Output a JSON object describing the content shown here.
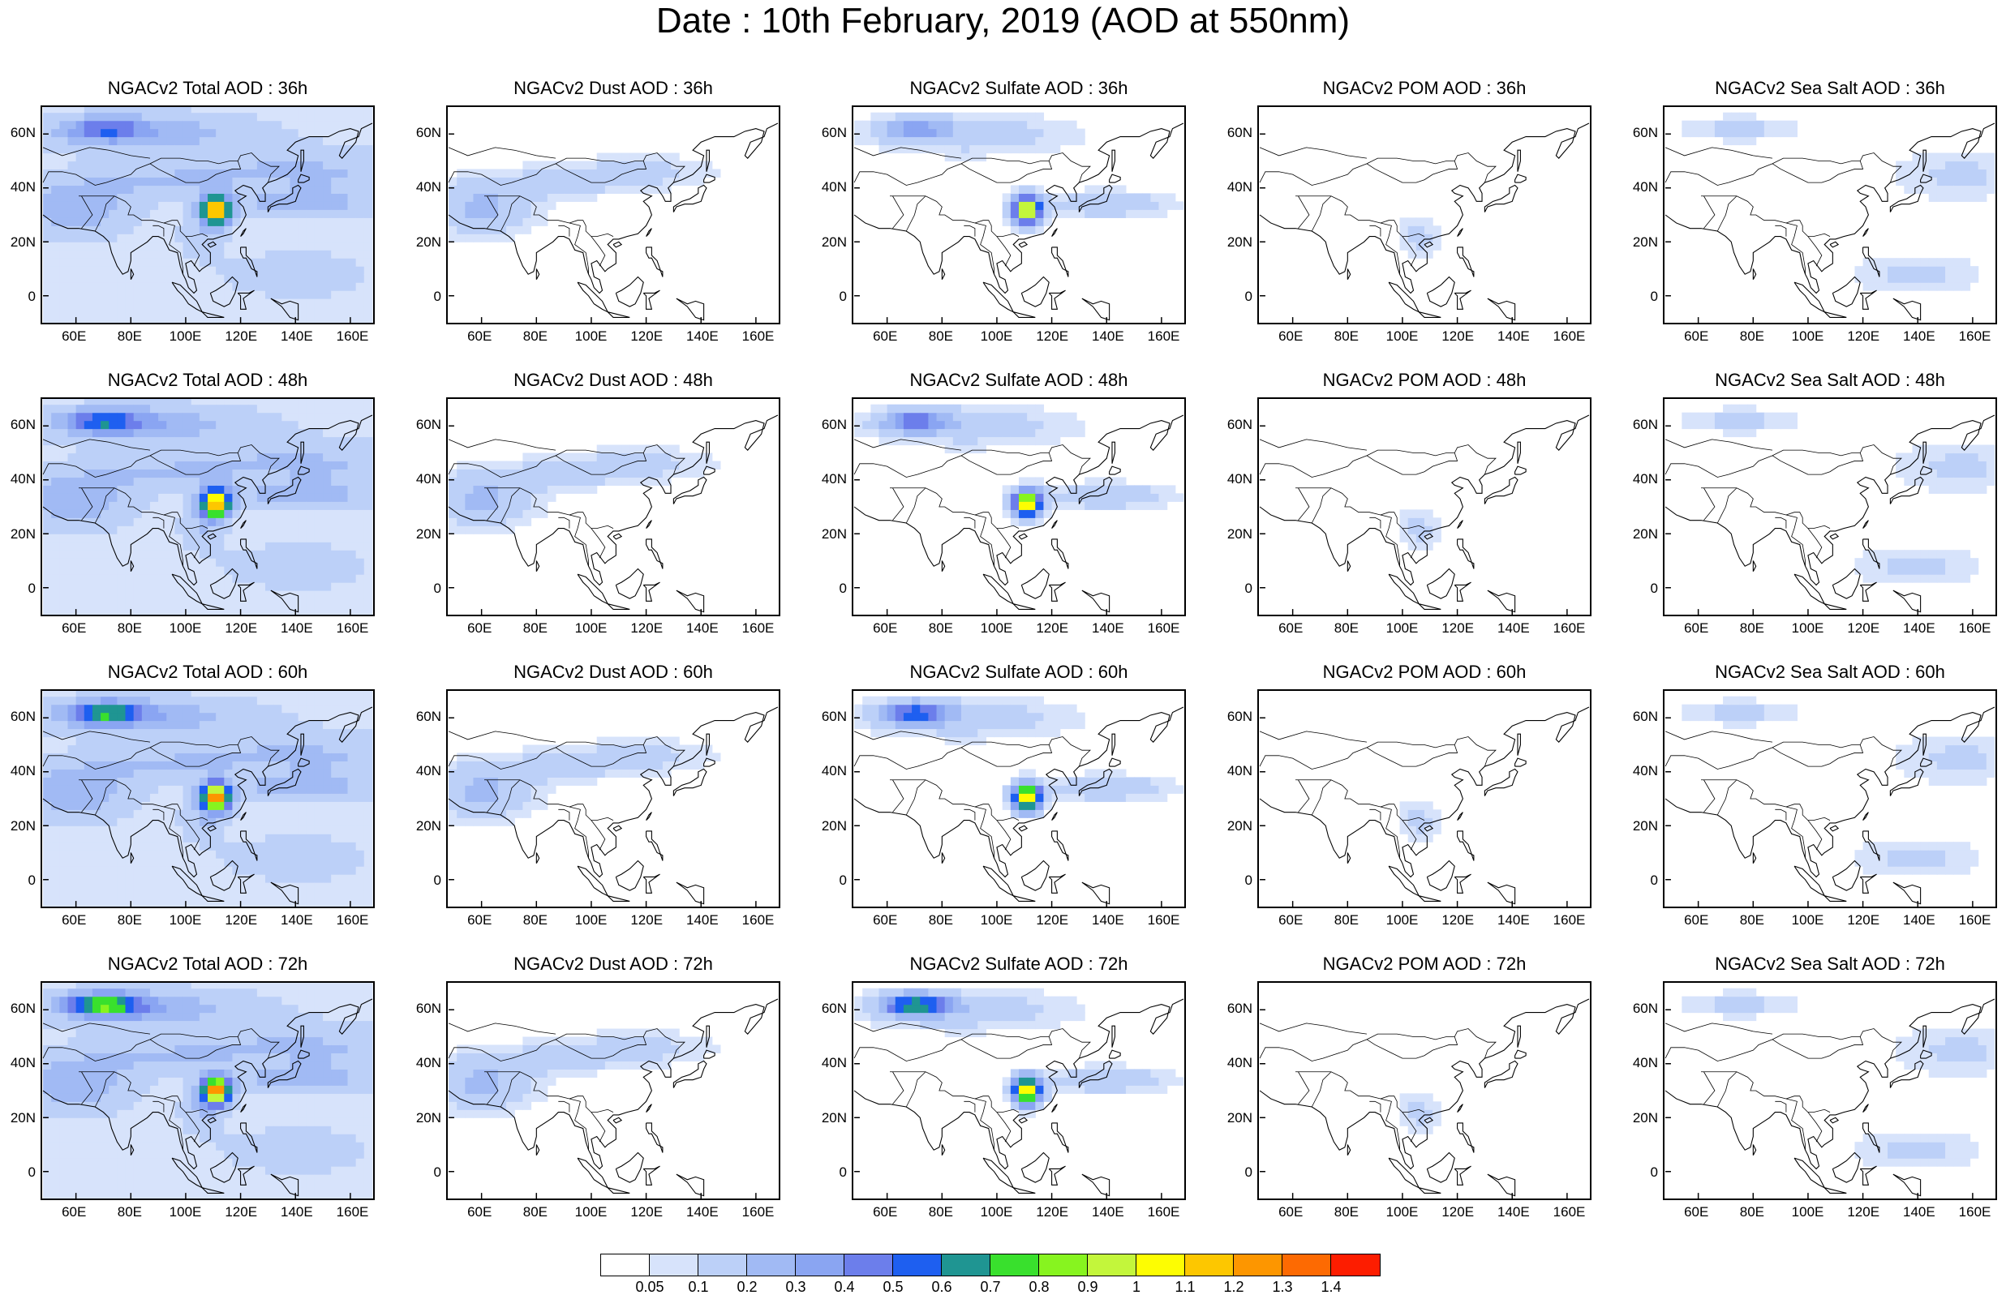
{
  "title": "Date : 10th February, 2019 (AOD at 550nm)",
  "panels": [
    {
      "title": "NGACv2 Total AOD : 36h",
      "species": "total",
      "hour": 36
    },
    {
      "title": "NGACv2 Dust AOD : 36h",
      "species": "dust",
      "hour": 36
    },
    {
      "title": "NGACv2 Sulfate AOD : 36h",
      "species": "sulfate",
      "hour": 36
    },
    {
      "title": "NGACv2 POM AOD : 36h",
      "species": "pom",
      "hour": 36
    },
    {
      "title": "NGACv2 Sea Salt AOD : 36h",
      "species": "seasalt",
      "hour": 36
    },
    {
      "title": "NGACv2 Total AOD : 48h",
      "species": "total",
      "hour": 48
    },
    {
      "title": "NGACv2 Dust AOD : 48h",
      "species": "dust",
      "hour": 48
    },
    {
      "title": "NGACv2 Sulfate AOD : 48h",
      "species": "sulfate",
      "hour": 48
    },
    {
      "title": "NGACv2 POM AOD : 48h",
      "species": "pom",
      "hour": 48
    },
    {
      "title": "NGACv2 Sea Salt AOD : 48h",
      "species": "seasalt",
      "hour": 48
    },
    {
      "title": "NGACv2 Total AOD : 60h",
      "species": "total",
      "hour": 60
    },
    {
      "title": "NGACv2 Dust AOD : 60h",
      "species": "dust",
      "hour": 60
    },
    {
      "title": "NGACv2 Sulfate AOD : 60h",
      "species": "sulfate",
      "hour": 60
    },
    {
      "title": "NGACv2 POM AOD : 60h",
      "species": "pom",
      "hour": 60
    },
    {
      "title": "NGACv2 Sea Salt AOD : 60h",
      "species": "seasalt",
      "hour": 60
    },
    {
      "title": "NGACv2 Total AOD : 72h",
      "species": "total",
      "hour": 72
    },
    {
      "title": "NGACv2 Dust AOD : 72h",
      "species": "dust",
      "hour": 72
    },
    {
      "title": "NGACv2 Sulfate AOD : 72h",
      "species": "sulfate",
      "hour": 72
    },
    {
      "title": "NGACv2 POM AOD : 72h",
      "species": "pom",
      "hour": 72
    },
    {
      "title": "NGACv2 Sea Salt  AOD : 72h",
      "species": "seasalt",
      "hour": 72
    }
  ],
  "lon_labels": [
    "60E",
    "80E",
    "100E",
    "120E",
    "140E",
    "160E"
  ],
  "lat_labels": [
    "60N",
    "40N",
    "20N",
    "0"
  ],
  "colorbar": {
    "labels": [
      "0.05",
      "0.1",
      "0.2",
      "0.3",
      "0.4",
      "0.5",
      "0.6",
      "0.7",
      "0.8",
      "0.9",
      "1",
      "1.1",
      "1.2",
      "1.3",
      "1.4"
    ],
    "colors": [
      "#ffffff",
      "#d7e3fb",
      "#bcd0f8",
      "#a1baf4",
      "#8aa5f2",
      "#6c7eeb",
      "#1e5ff0",
      "#1f9592",
      "#39e02d",
      "#87f41f",
      "#c3f63b",
      "#fdfd02",
      "#fdc700",
      "#fd9600",
      "#fd6a02",
      "#fd1d00"
    ]
  }
}
